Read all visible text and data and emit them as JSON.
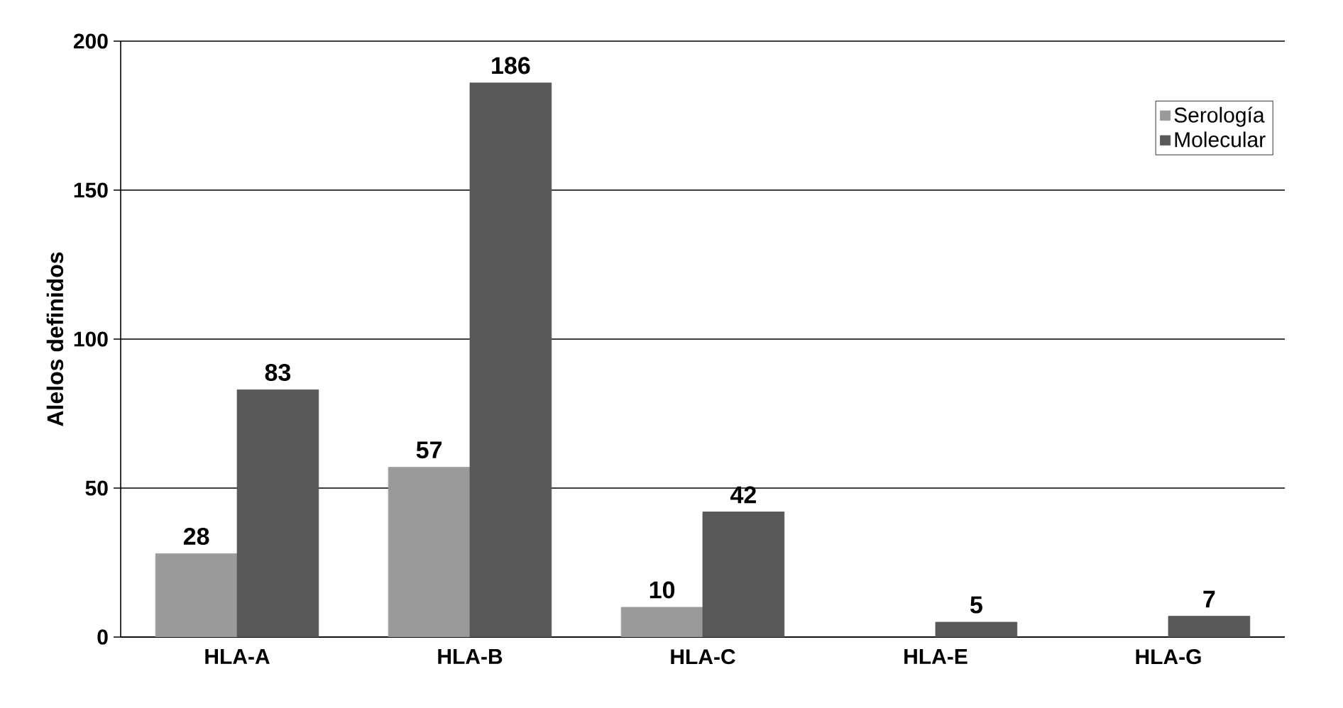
{
  "chart_data": {
    "type": "bar",
    "ylabel": "Alelos definidos",
    "categories": [
      "HLA-A",
      "HLA-B",
      "HLA-C",
      "HLA-E",
      "HLA-G"
    ],
    "series": [
      {
        "name": "Serología",
        "color": "#9a9a9a",
        "values": [
          28,
          57,
          10,
          null,
          null
        ]
      },
      {
        "name": "Molecular",
        "color": "#585858",
        "values": [
          83,
          186,
          42,
          5,
          7
        ]
      }
    ],
    "ylim": [
      0,
      200
    ],
    "yticks": [
      0,
      50,
      100,
      150,
      200
    ],
    "grid": "y",
    "legend": "top right",
    "data_labels": true
  }
}
